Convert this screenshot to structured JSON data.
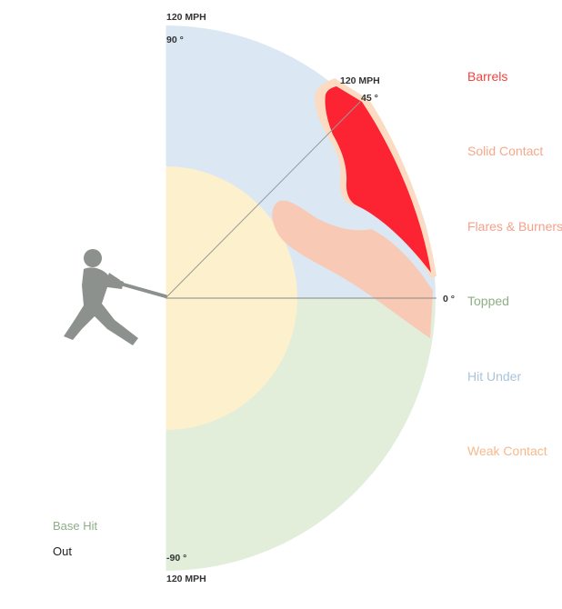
{
  "diagram": {
    "labels": {
      "speed_top": "120 MPH",
      "angle_top": "90 °",
      "speed_45": "120 MPH",
      "angle_45": "45 °",
      "angle_0": "0 °",
      "angle_bottom": "-90 °",
      "speed_bottom": "120 MPH"
    },
    "legend": [
      {
        "label": "Barrels",
        "color": "#f2433d"
      },
      {
        "label": "Solid Contact",
        "color": "#f6a98a"
      },
      {
        "label": "Flares & Burners",
        "color": "#f4a08a"
      },
      {
        "label": "Topped",
        "color": "#8fae86"
      },
      {
        "label": "Hit Under",
        "color": "#a9c4dc"
      },
      {
        "label": "Weak Contact",
        "color": "#f6b98a"
      }
    ],
    "bottom_legend": {
      "base_hit": {
        "label": "Base Hit",
        "color": "#8fae86"
      },
      "out": {
        "label": "Out",
        "color": "#222222"
      }
    },
    "colors": {
      "hit_under": "#dbe8f3",
      "weak_contact": "#fdf0cc",
      "topped": "#e2edda",
      "flares_burners": "#f8cab5",
      "solid_contact": "#fbdcc2",
      "barrels": "#fc2332",
      "batter": "#8c918d"
    }
  }
}
